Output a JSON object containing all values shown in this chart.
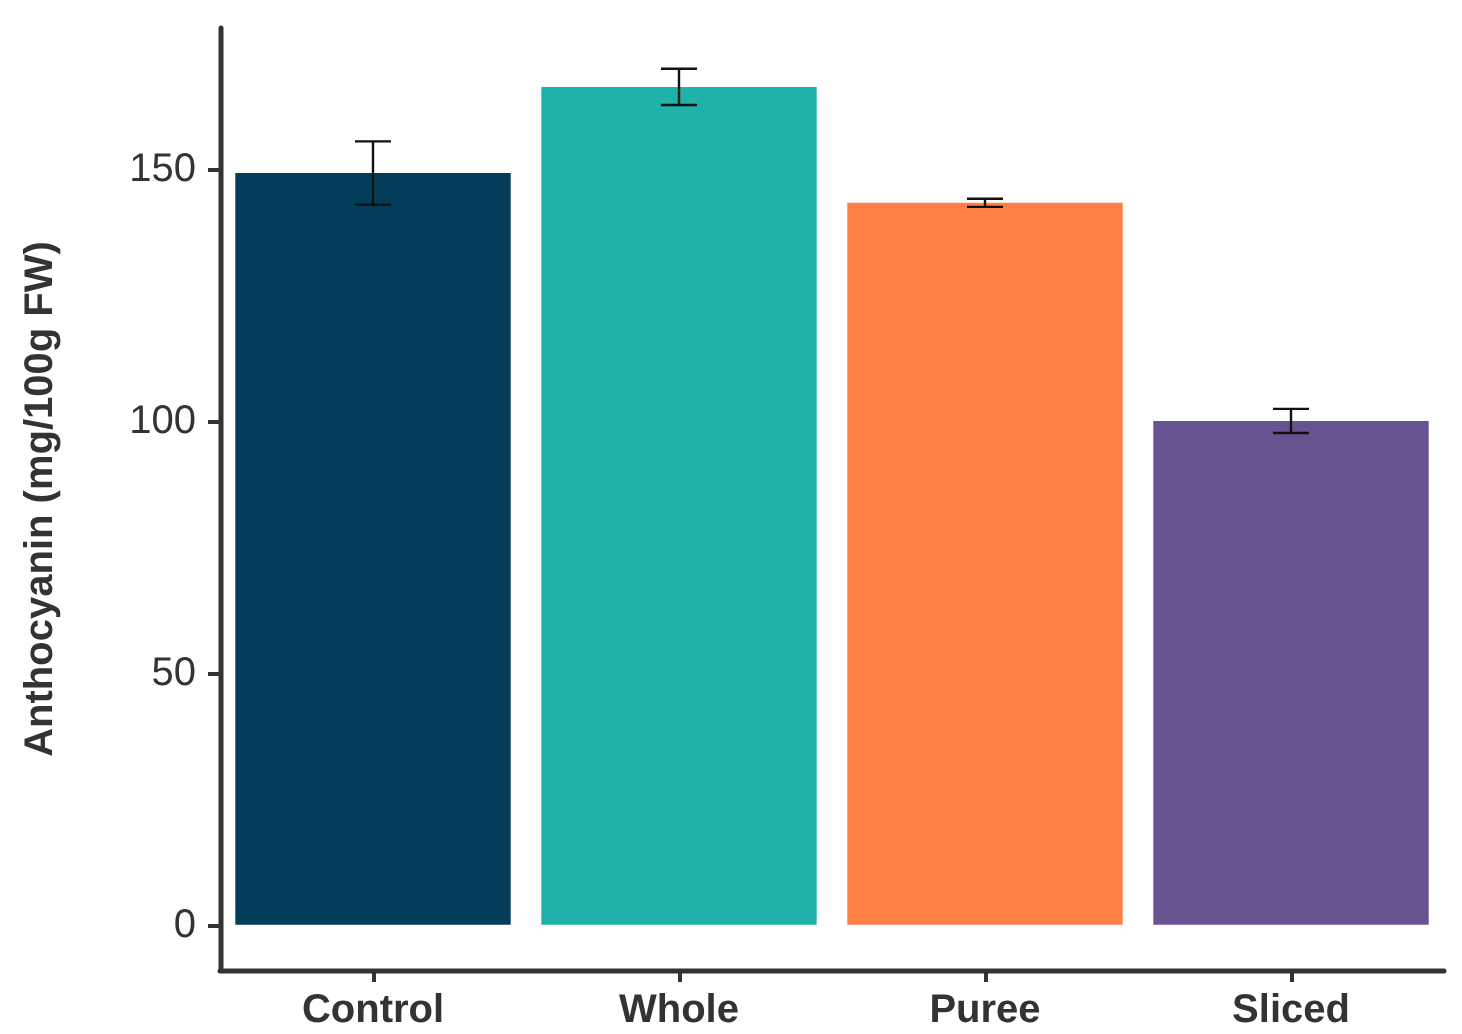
{
  "chart_data": {
    "type": "bar",
    "ylabel": "Anthocyanin (mg/100g FW)",
    "categories": [
      "Control",
      "Whole",
      "Puree",
      "Sliced"
    ],
    "values": [
      149.2,
      166.3,
      143.3,
      100
    ],
    "colors": [
      "#033d5a",
      "#20b2aa",
      "#ff7f45",
      "#67538f"
    ],
    "errors": [
      6.3,
      3.6,
      0.8,
      2.4
    ],
    "ylim": [
      -9,
      178
    ],
    "yticks": [
      0,
      50,
      100,
      150
    ],
    "grid": false
  }
}
